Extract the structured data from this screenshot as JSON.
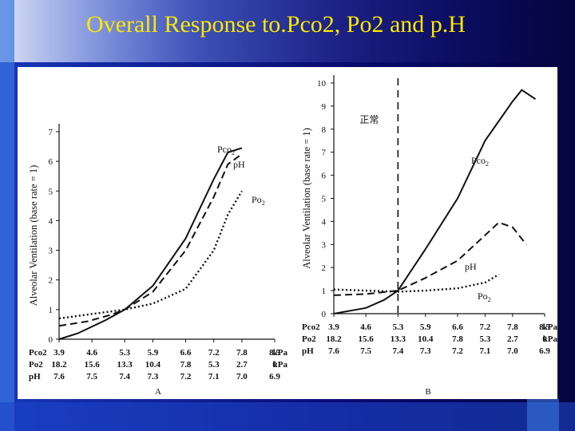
{
  "slide": {
    "title": "Overall Response to.Pco2, Po2 and p.H"
  },
  "colors": {
    "background": "#0a0a60",
    "title": "#ffe800",
    "accent_bar": "#3a78e0",
    "panel": "#ffffff",
    "ink": "#111111"
  },
  "chart_data": [
    {
      "type": "line",
      "panel_label": "A",
      "ylabel": "Alveolar Ventilation (base rate = 1)",
      "ylim": [
        0,
        7
      ],
      "yticks": [
        "0",
        "1",
        "2",
        "3",
        "4",
        "5",
        "6",
        "7"
      ],
      "xlim": [
        3.9,
        8.5
      ],
      "x_rows": [
        {
          "label": "Pco2",
          "ticks": [
            "3.9",
            "4.6",
            "5.3",
            "5.9",
            "6.6",
            "7.2",
            "7.8",
            "8.5"
          ],
          "unit": "kPa"
        },
        {
          "label": "Po2",
          "ticks": [
            "18.2",
            "15.6",
            "13.3",
            "10.4",
            "7.8",
            "5.3",
            "2.7",
            "0"
          ],
          "unit": "kPa"
        },
        {
          "label": "pH",
          "ticks": [
            "7.6",
            "7.5",
            "7.4",
            "7.3",
            "7.2",
            "7.1",
            "7.0",
            "6.9"
          ],
          "unit": ""
        }
      ],
      "series": [
        {
          "name": "Pco2",
          "style": "solid",
          "x": [
            3.9,
            4.3,
            4.9,
            5.3,
            5.9,
            6.6,
            7.2,
            7.5,
            7.8
          ],
          "y": [
            0.0,
            0.2,
            0.65,
            1.0,
            1.8,
            3.4,
            5.4,
            6.3,
            6.45
          ]
        },
        {
          "name": "pH",
          "style": "dashed",
          "x": [
            3.9,
            4.5,
            5.0,
            5.3,
            5.9,
            6.6,
            7.2,
            7.5,
            7.8
          ],
          "y": [
            0.45,
            0.6,
            0.82,
            1.0,
            1.6,
            3.0,
            4.8,
            5.9,
            6.25
          ]
        },
        {
          "name": "Po2",
          "style": "dotted",
          "x": [
            3.9,
            4.6,
            5.3,
            5.9,
            6.6,
            7.2,
            7.5,
            7.8
          ],
          "y": [
            0.7,
            0.85,
            1.0,
            1.2,
            1.7,
            3.0,
            4.2,
            5.0
          ]
        }
      ]
    },
    {
      "type": "line",
      "panel_label": "B",
      "ylabel": "Alveolar Ventilation (base rate = 1)",
      "ylim": [
        0,
        10
      ],
      "yticks": [
        "0",
        "1",
        "2",
        "3",
        "4",
        "5",
        "6",
        "7",
        "8",
        "9",
        "10"
      ],
      "xlim": [
        3.9,
        8.5
      ],
      "annotation": "正常",
      "normal_x": 5.3,
      "x_rows": [
        {
          "label": "Pco2",
          "ticks": [
            "3.9",
            "4.6",
            "5.3",
            "5.9",
            "6.6",
            "7.2",
            "7.8",
            "8.5"
          ],
          "unit": "kPa"
        },
        {
          "label": "Po2",
          "ticks": [
            "18.2",
            "15.6",
            "13.3",
            "10.4",
            "7.8",
            "5.3",
            "2.7",
            "0"
          ],
          "unit": "kPa"
        },
        {
          "label": "pH",
          "ticks": [
            "7.6",
            "7.5",
            "7.4",
            "7.3",
            "7.2",
            "7.1",
            "7.0",
            "6.9"
          ],
          "unit": ""
        }
      ],
      "series": [
        {
          "name": "Pco2",
          "style": "solid",
          "x": [
            3.9,
            4.6,
            5.0,
            5.3,
            5.9,
            6.6,
            7.2,
            7.8,
            8.0,
            8.3
          ],
          "y": [
            0.0,
            0.25,
            0.6,
            1.0,
            2.8,
            5.0,
            7.5,
            9.2,
            9.7,
            9.3
          ]
        },
        {
          "name": "pH",
          "style": "dashed",
          "x": [
            3.9,
            4.6,
            5.3,
            5.9,
            6.6,
            7.2,
            7.5,
            7.8,
            8.1
          ],
          "y": [
            0.8,
            0.85,
            1.0,
            1.55,
            2.3,
            3.4,
            3.95,
            3.75,
            3.0
          ]
        },
        {
          "name": "Po2",
          "style": "dotted",
          "x": [
            3.9,
            4.6,
            5.3,
            5.9,
            6.6,
            7.2,
            7.5
          ],
          "y": [
            1.05,
            1.0,
            0.95,
            1.0,
            1.1,
            1.35,
            1.7
          ]
        }
      ]
    }
  ]
}
